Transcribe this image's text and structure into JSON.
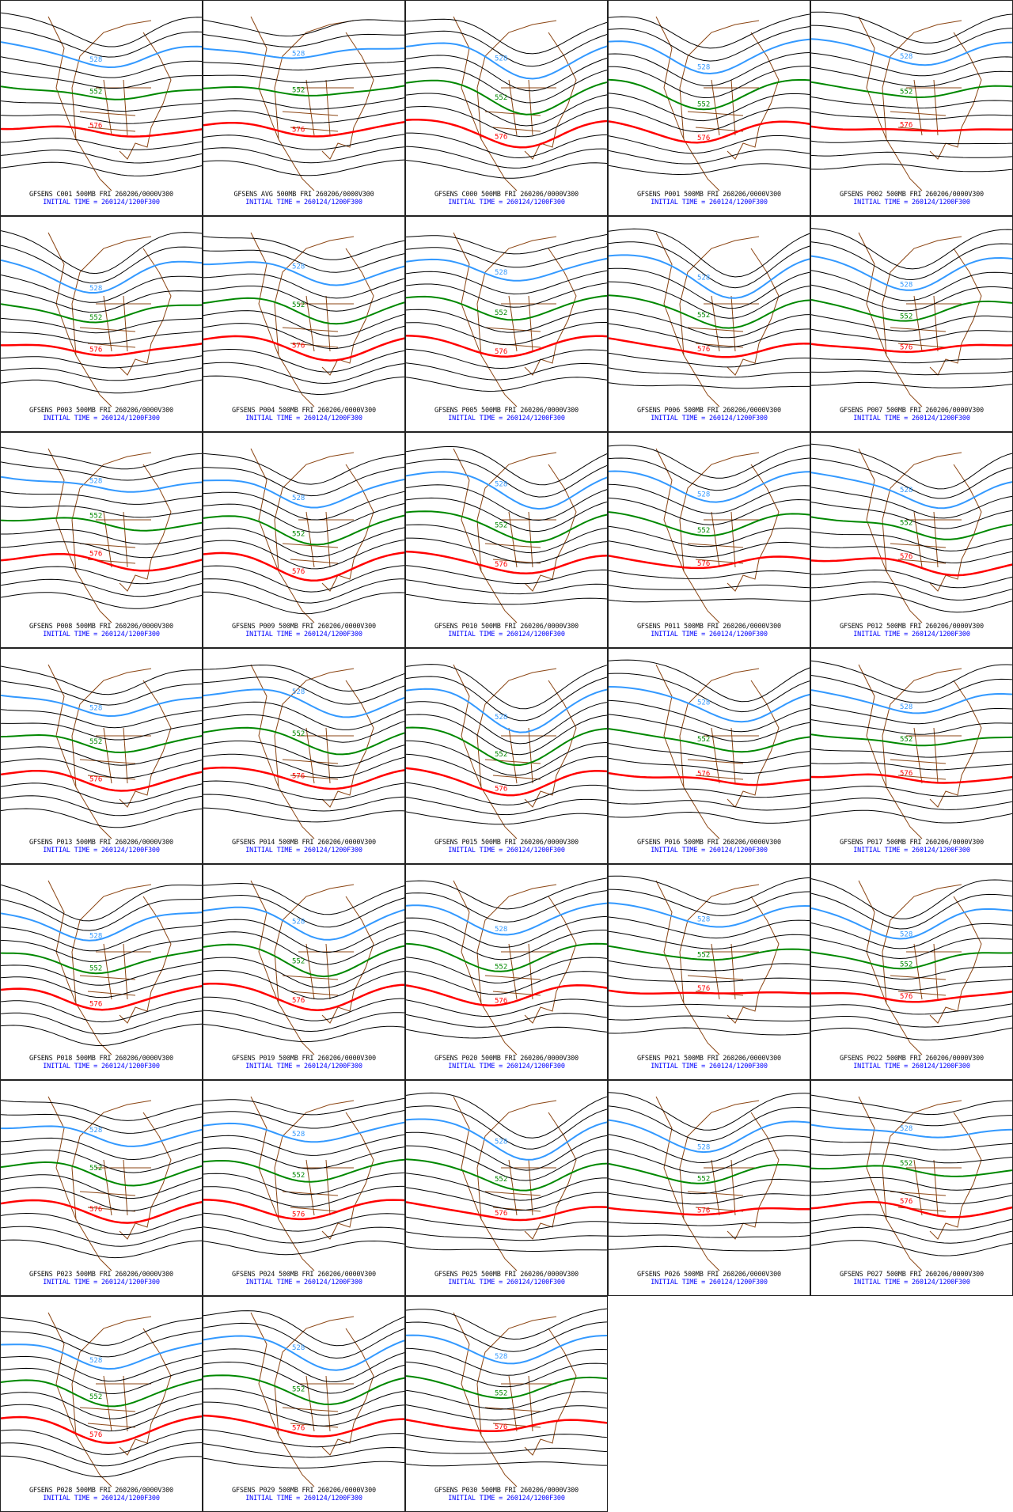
{
  "chart_data": {
    "type": "contour-map-grid",
    "title_template": "GFSENS {member} 500MB FRI 260206/0000V300",
    "subtitle": "INITIAL TIME = 260124/1200F300",
    "level": "500MB",
    "valid": "FRI 260206/0000V300",
    "contour_labels": {
      "low": "528",
      "mid": "552",
      "high": "576"
    },
    "colors": {
      "contour": "#000000",
      "low": "#3399ff",
      "mid": "#008800",
      "high": "#ff0000",
      "map": "#8b4513",
      "caption": "#111111",
      "subtitle": "#0000ff"
    },
    "members": [
      "C001",
      "AVG",
      "C000",
      "P001",
      "P002",
      "P003",
      "P004",
      "P005",
      "P006",
      "P007",
      "P008",
      "P009",
      "P010",
      "P011",
      "P012",
      "P013",
      "P014",
      "P015",
      "P016",
      "P017",
      "P018",
      "P019",
      "P020",
      "P021",
      "P022",
      "P023",
      "P024",
      "P025",
      "P026",
      "P027",
      "P028",
      "P029",
      "P030"
    ],
    "panels": [
      {
        "title": "GFSENS C001 500MB FRI 260206/0000V300"
      },
      {
        "title": "GFSENS AVG 500MB FRI 260206/0000V300"
      },
      {
        "title": "GFSENS C000 500MB FRI 260206/0000V300"
      },
      {
        "title": "GFSENS P001 500MB FRI 260206/0000V300"
      },
      {
        "title": "GFSENS P002 500MB FRI 260206/0000V300"
      },
      {
        "title": "GFSENS P003 500MB FRI 260206/0000V300"
      },
      {
        "title": "GFSENS P004 500MB FRI 260206/0000V300"
      },
      {
        "title": "GFSENS P005 500MB FRI 260206/0000V300"
      },
      {
        "title": "GFSENS P006 500MB FRI 260206/0000V300"
      },
      {
        "title": "GFSENS P007 500MB FRI 260206/0000V300"
      },
      {
        "title": "GFSENS P008 500MB FRI 260206/0000V300"
      },
      {
        "title": "GFSENS P009 500MB FRI 260206/0000V300"
      },
      {
        "title": "GFSENS P010 500MB FRI 260206/0000V300"
      },
      {
        "title": "GFSENS P011 500MB FRI 260206/0000V300"
      },
      {
        "title": "GFSENS P012 500MB FRI 260206/0000V300"
      },
      {
        "title": "GFSENS P013 500MB FRI 260206/0000V300"
      },
      {
        "title": "GFSENS P014 500MB FRI 260206/0000V300"
      },
      {
        "title": "GFSENS P015 500MB FRI 260206/0000V300"
      },
      {
        "title": "GFSENS P016 500MB FRI 260206/0000V300"
      },
      {
        "title": "GFSENS P017 500MB FRI 260206/0000V300"
      },
      {
        "title": "GFSENS P018 500MB FRI 260206/0000V300"
      },
      {
        "title": "GFSENS P019 500MB FRI 260206/0000V300"
      },
      {
        "title": "GFSENS P020 500MB FRI 260206/0000V300"
      },
      {
        "title": "GFSENS P021 500MB FRI 260206/0000V300"
      },
      {
        "title": "GFSENS P022 500MB FRI 260206/0000V300"
      },
      {
        "title": "GFSENS P023 500MB FRI 260206/0000V300"
      },
      {
        "title": "GFSENS P024 500MB FRI 260206/0000V300"
      },
      {
        "title": "GFSENS P025 500MB FRI 260206/0000V300"
      },
      {
        "title": "GFSENS P026 500MB FRI 260206/0000V300"
      },
      {
        "title": "GFSENS P027 500MB FRI 260206/0000V300"
      },
      {
        "title": "GFSENS P028 500MB FRI 260206/0000V300"
      },
      {
        "title": "GFSENS P029 500MB FRI 260206/0000V300"
      },
      {
        "title": "GFSENS P030 500MB FRI 260206/0000V300"
      }
    ]
  }
}
